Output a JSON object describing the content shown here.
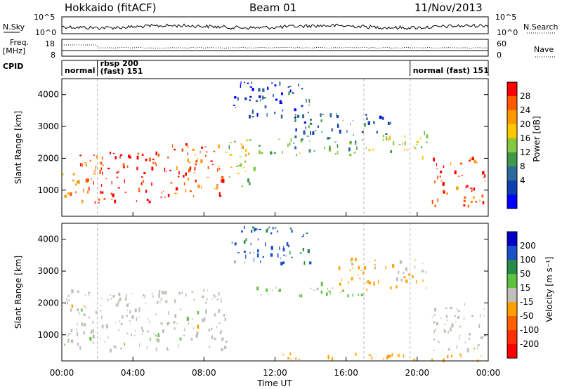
{
  "header": {
    "radar": "Hokkaido (fitACF)",
    "beam": "Beam 01",
    "date": "11/Nov/2013"
  },
  "noise_panel": {
    "left_label": "N.Sky",
    "right_label": "N.Search",
    "yticks_left": [
      "10^5",
      "10^0"
    ],
    "yticks_right": [
      "10^5",
      "10^0"
    ]
  },
  "freq_panel": {
    "label_line1": "Freq.",
    "label_line2": "[MHz]",
    "yticks_left": [
      "18",
      "8"
    ],
    "yticks_right": [
      "60",
      "0"
    ],
    "right_label": "Nave"
  },
  "cpid_panel": {
    "label": "CPID",
    "modes": [
      {
        "name": "normal",
        "start": 0.0,
        "end": 2.0
      },
      {
        "name_line1": "rbsp 200",
        "name_line2": "(fast) 151",
        "start": 2.0,
        "end": 19.6
      },
      {
        "name": "normal (fast) 151",
        "start": 19.6,
        "end": 24.0
      }
    ]
  },
  "power_panel": {
    "ylabel": "Slant Range [km]",
    "yticks": [
      "4000",
      "3000",
      "2000",
      "1000"
    ],
    "colorbar": {
      "label": "Power [dB]",
      "ticks": [
        "28",
        "24",
        "20",
        "16",
        "12",
        "8",
        "4"
      ],
      "colors": [
        "#ff0000",
        "#ff5a00",
        "#ff9a00",
        "#ffc800",
        "#88c840",
        "#3c9a4a",
        "#2e6a9a",
        "#1040b0",
        "#0000ff"
      ]
    }
  },
  "velocity_panel": {
    "ylabel": "Slant Range [km]",
    "yticks": [
      "4000",
      "3000",
      "2000",
      "1000"
    ],
    "colorbar": {
      "label": "Velocity [m s⁻¹]",
      "ticks": [
        "200",
        "100",
        "50",
        "15",
        "-15",
        "-50",
        "-100",
        "-200"
      ],
      "colors": [
        "#0000c8",
        "#1a50c8",
        "#2a8a4a",
        "#60c040",
        "#c0c0b8",
        "#ffa000",
        "#ff6000",
        "#ff3000",
        "#ff0000"
      ]
    }
  },
  "xaxis": {
    "label": "Time UT",
    "ticks": [
      "00:00",
      "04:00",
      "08:00",
      "12:00",
      "16:00",
      "20:00",
      "00:00"
    ]
  },
  "chart_data": {
    "type": "heatmap",
    "title": "Hokkaido (fitACF)  Beam 01  11/Nov/2013",
    "xlabel": "Time UT",
    "ylabel": "Slant Range [km]",
    "xlim": [
      0,
      24
    ],
    "ylim": [
      180,
      4500
    ],
    "x_ticks": [
      "00:00",
      "04:00",
      "08:00",
      "12:00",
      "16:00",
      "20:00",
      "00:00"
    ],
    "y_ticks": [
      1000,
      2000,
      3000,
      4000
    ],
    "power_scale_dB": [
      0,
      32
    ],
    "velocity_scale_ms": [
      -250,
      250
    ],
    "dashed_markers_UT": [
      2.0,
      17.0,
      19.6
    ],
    "power_regions": [
      {
        "t0": 0.0,
        "t1": 2.0,
        "r0": 600,
        "r1": 2100,
        "dB": 26
      },
      {
        "t0": 2.0,
        "t1": 6.2,
        "r0": 600,
        "r1": 2200,
        "dB": 30
      },
      {
        "t0": 6.2,
        "t1": 9.2,
        "r0": 800,
        "r1": 2500,
        "dB": 28
      },
      {
        "t0": 9.2,
        "t1": 10.8,
        "r0": 1100,
        "r1": 2600,
        "dB": 18
      },
      {
        "t0": 10.8,
        "t1": 17.8,
        "r0": 2100,
        "r1": 2600,
        "dB": 14
      },
      {
        "t0": 13.0,
        "t1": 18.5,
        "r0": 2600,
        "r1": 3400,
        "dB": 8
      },
      {
        "t0": 18.0,
        "t1": 20.8,
        "r0": 2000,
        "r1": 2800,
        "dB": 18
      },
      {
        "t0": 20.8,
        "t1": 23.8,
        "r0": 500,
        "r1": 2000,
        "dB": 28
      },
      {
        "t0": 9.5,
        "t1": 14.0,
        "r0": 3200,
        "r1": 4400,
        "dB": 6
      }
    ],
    "velocity_regions": [
      {
        "t0": 0.0,
        "t1": 9.2,
        "r0": 500,
        "r1": 2400,
        "v": 0
      },
      {
        "t0": 9.5,
        "t1": 14.0,
        "r0": 3200,
        "r1": 4400,
        "v": 150
      },
      {
        "t0": 10.8,
        "t1": 17.0,
        "r0": 2200,
        "r1": 2600,
        "v": 40
      },
      {
        "t0": 15.5,
        "t1": 20.5,
        "r0": 2400,
        "r1": 3400,
        "v": -40
      },
      {
        "t0": 20.8,
        "t1": 23.8,
        "r0": 500,
        "r1": 2000,
        "v": 0
      },
      {
        "t0": 12.0,
        "t1": 24.0,
        "r0": 180,
        "r1": 400,
        "v": -60
      }
    ]
  }
}
